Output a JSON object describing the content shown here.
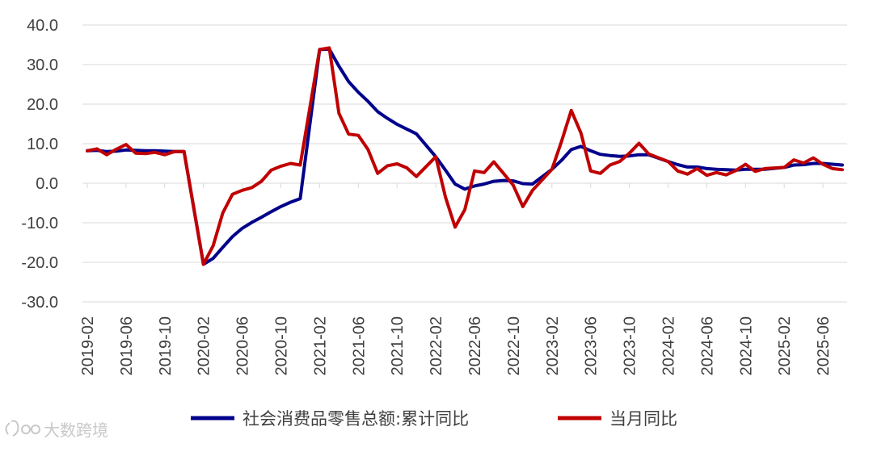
{
  "chart_data": {
    "type": "line",
    "ylim": [
      -30,
      40
    ],
    "yticks": [
      -30,
      -20,
      -10,
      0,
      10,
      20,
      30,
      40
    ],
    "ytick_labels": [
      "-30.0",
      "-20.0",
      "-10.0",
      "0.0",
      "10.0",
      "20.0",
      "30.0",
      "40.0"
    ],
    "x_start": "2019-02",
    "x_end": "2025-08",
    "xtick_labels": [
      "2019-02",
      "2019-06",
      "2019-10",
      "2020-02",
      "2020-06",
      "2020-10",
      "2021-02",
      "2021-06",
      "2021-10",
      "2022-02",
      "2022-06",
      "2022-10",
      "2023-02",
      "2023-06",
      "2023-10",
      "2024-02",
      "2024-06",
      "2024-10",
      "2025-02",
      "2025-06"
    ],
    "grid": true,
    "legend_position": "bottom",
    "series": [
      {
        "name": "社会消费品零售总额:累计同比",
        "color": "#00008b",
        "points": [
          [
            "2019-02",
            8.2
          ],
          [
            "2019-03",
            8.3
          ],
          [
            "2019-04",
            8.0
          ],
          [
            "2019-05",
            8.1
          ],
          [
            "2019-06",
            8.4
          ],
          [
            "2019-07",
            8.3
          ],
          [
            "2019-08",
            8.2
          ],
          [
            "2019-09",
            8.2
          ],
          [
            "2019-10",
            8.1
          ],
          [
            "2019-11",
            8.0
          ],
          [
            "2019-12",
            8.0
          ],
          [
            "2020-02",
            -20.5
          ],
          [
            "2020-03",
            -19.0
          ],
          [
            "2020-04",
            -16.2
          ],
          [
            "2020-05",
            -13.5
          ],
          [
            "2020-06",
            -11.4
          ],
          [
            "2020-07",
            -9.9
          ],
          [
            "2020-08",
            -8.6
          ],
          [
            "2020-09",
            -7.2
          ],
          [
            "2020-10",
            -5.9
          ],
          [
            "2020-11",
            -4.8
          ],
          [
            "2020-12",
            -3.9
          ],
          [
            "2021-02",
            33.8
          ],
          [
            "2021-03",
            33.9
          ],
          [
            "2021-04",
            29.6
          ],
          [
            "2021-05",
            25.7
          ],
          [
            "2021-06",
            23.0
          ],
          [
            "2021-07",
            20.7
          ],
          [
            "2021-08",
            18.1
          ],
          [
            "2021-09",
            16.4
          ],
          [
            "2021-10",
            14.9
          ],
          [
            "2021-11",
            13.7
          ],
          [
            "2021-12",
            12.5
          ],
          [
            "2022-02",
            6.7
          ],
          [
            "2022-03",
            3.3
          ],
          [
            "2022-04",
            -0.2
          ],
          [
            "2022-05",
            -1.5
          ],
          [
            "2022-06",
            -0.7
          ],
          [
            "2022-07",
            -0.2
          ],
          [
            "2022-08",
            0.5
          ],
          [
            "2022-09",
            0.7
          ],
          [
            "2022-10",
            0.6
          ],
          [
            "2022-11",
            -0.1
          ],
          [
            "2022-12",
            -0.2
          ],
          [
            "2023-02",
            3.5
          ],
          [
            "2023-03",
            5.8
          ],
          [
            "2023-04",
            8.5
          ],
          [
            "2023-05",
            9.3
          ],
          [
            "2023-06",
            8.2
          ],
          [
            "2023-07",
            7.3
          ],
          [
            "2023-08",
            7.0
          ],
          [
            "2023-09",
            6.8
          ],
          [
            "2023-10",
            6.9
          ],
          [
            "2023-11",
            7.2
          ],
          [
            "2023-12",
            7.2
          ],
          [
            "2024-02",
            5.5
          ],
          [
            "2024-03",
            4.7
          ],
          [
            "2024-04",
            4.1
          ],
          [
            "2024-05",
            4.1
          ],
          [
            "2024-06",
            3.7
          ],
          [
            "2024-07",
            3.5
          ],
          [
            "2024-08",
            3.4
          ],
          [
            "2024-09",
            3.3
          ],
          [
            "2024-10",
            3.5
          ],
          [
            "2024-11",
            3.5
          ],
          [
            "2024-12",
            3.5
          ],
          [
            "2025-02",
            4.0
          ],
          [
            "2025-03",
            4.6
          ],
          [
            "2025-04",
            4.7
          ],
          [
            "2025-05",
            5.0
          ],
          [
            "2025-06",
            5.0
          ],
          [
            "2025-07",
            4.8
          ],
          [
            "2025-08",
            4.6
          ]
        ]
      },
      {
        "name": "当月同比",
        "color": "#c00000",
        "points": [
          [
            "2019-02",
            8.2
          ],
          [
            "2019-03",
            8.7
          ],
          [
            "2019-04",
            7.2
          ],
          [
            "2019-05",
            8.6
          ],
          [
            "2019-06",
            9.8
          ],
          [
            "2019-07",
            7.6
          ],
          [
            "2019-08",
            7.5
          ],
          [
            "2019-09",
            7.8
          ],
          [
            "2019-10",
            7.2
          ],
          [
            "2019-11",
            8.0
          ],
          [
            "2019-12",
            8.0
          ],
          [
            "2020-02",
            -20.5
          ],
          [
            "2020-03",
            -15.8
          ],
          [
            "2020-04",
            -7.5
          ],
          [
            "2020-05",
            -2.8
          ],
          [
            "2020-06",
            -1.8
          ],
          [
            "2020-07",
            -1.1
          ],
          [
            "2020-08",
            0.5
          ],
          [
            "2020-09",
            3.3
          ],
          [
            "2020-10",
            4.3
          ],
          [
            "2020-11",
            5.0
          ],
          [
            "2020-12",
            4.6
          ],
          [
            "2021-02",
            33.8
          ],
          [
            "2021-03",
            34.2
          ],
          [
            "2021-04",
            17.7
          ],
          [
            "2021-05",
            12.4
          ],
          [
            "2021-06",
            12.1
          ],
          [
            "2021-07",
            8.5
          ],
          [
            "2021-08",
            2.5
          ],
          [
            "2021-09",
            4.4
          ],
          [
            "2021-10",
            4.9
          ],
          [
            "2021-11",
            3.9
          ],
          [
            "2021-12",
            1.7
          ],
          [
            "2022-02",
            6.7
          ],
          [
            "2022-03",
            -3.5
          ],
          [
            "2022-04",
            -11.1
          ],
          [
            "2022-05",
            -6.7
          ],
          [
            "2022-06",
            3.1
          ],
          [
            "2022-07",
            2.7
          ],
          [
            "2022-08",
            5.4
          ],
          [
            "2022-09",
            2.5
          ],
          [
            "2022-10",
            -0.5
          ],
          [
            "2022-11",
            -5.9
          ],
          [
            "2022-12",
            -1.8
          ],
          [
            "2023-02",
            3.5
          ],
          [
            "2023-03",
            10.6
          ],
          [
            "2023-04",
            18.4
          ],
          [
            "2023-05",
            12.7
          ],
          [
            "2023-06",
            3.1
          ],
          [
            "2023-07",
            2.5
          ],
          [
            "2023-08",
            4.6
          ],
          [
            "2023-09",
            5.5
          ],
          [
            "2023-10",
            7.6
          ],
          [
            "2023-11",
            10.1
          ],
          [
            "2023-12",
            7.4
          ],
          [
            "2024-02",
            5.5
          ],
          [
            "2024-03",
            3.1
          ],
          [
            "2024-04",
            2.3
          ],
          [
            "2024-05",
            3.7
          ],
          [
            "2024-06",
            2.0
          ],
          [
            "2024-07",
            2.7
          ],
          [
            "2024-08",
            2.1
          ],
          [
            "2024-09",
            3.2
          ],
          [
            "2024-10",
            4.8
          ],
          [
            "2024-11",
            3.0
          ],
          [
            "2024-12",
            3.7
          ],
          [
            "2025-02",
            4.0
          ],
          [
            "2025-03",
            5.9
          ],
          [
            "2025-04",
            5.1
          ],
          [
            "2025-05",
            6.4
          ],
          [
            "2025-06",
            4.8
          ],
          [
            "2025-07",
            3.7
          ],
          [
            "2025-08",
            3.4
          ]
        ]
      }
    ]
  },
  "watermark": "大数跨境"
}
